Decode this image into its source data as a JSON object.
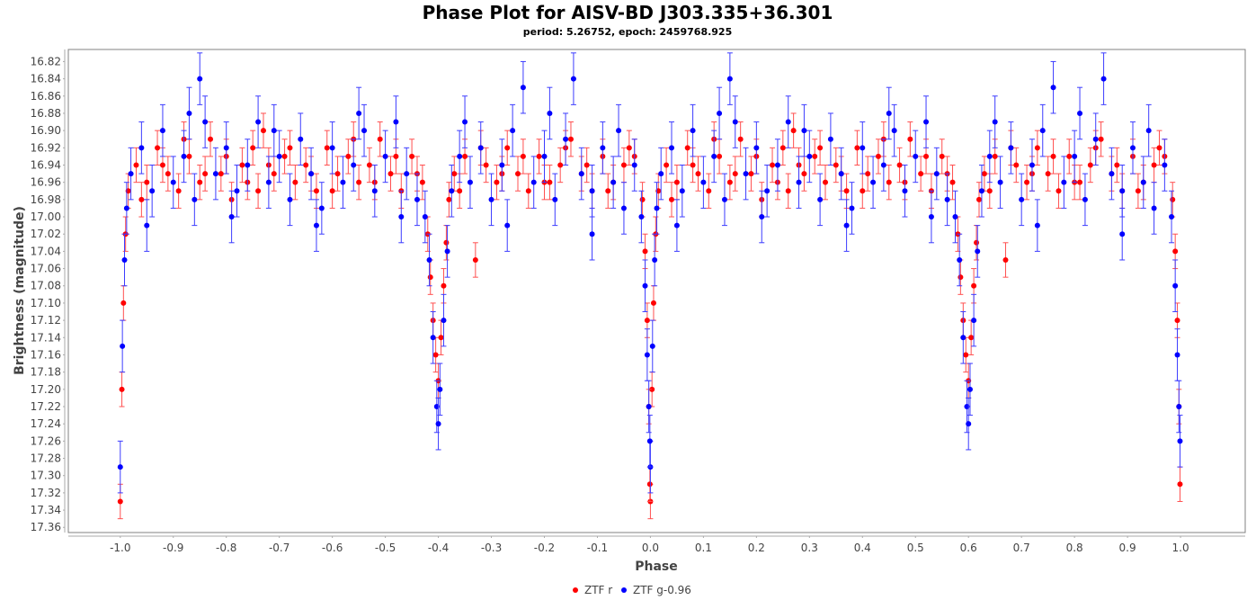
{
  "chart_data": {
    "type": "scatter",
    "title": "Phase Plot for AISV-BD J303.335+36.301",
    "subtitle": "period: 5.26752, epoch: 2459768.925",
    "xlabel": "Phase",
    "ylabel": "Brightness (magnitude)",
    "xlim": [
      -1.098,
      1.122
    ],
    "ylim": [
      16.806,
      17.366
    ],
    "y_inverted": true,
    "xticks": [
      "-1.0",
      "-0.9",
      "-0.8",
      "-0.7",
      "-0.6",
      "-0.5",
      "-0.4",
      "-0.3",
      "-0.2",
      "-0.1",
      "0.0",
      "0.1",
      "0.2",
      "0.3",
      "0.4",
      "0.5",
      "0.6",
      "0.7",
      "0.8",
      "0.9",
      "1.0"
    ],
    "yticks": [
      "16.82",
      "16.84",
      "16.86",
      "16.88",
      "16.90",
      "16.92",
      "16.94",
      "16.96",
      "16.98",
      "17.00",
      "17.02",
      "17.04",
      "17.06",
      "17.08",
      "17.10",
      "17.12",
      "17.14",
      "17.16",
      "17.18",
      "17.20",
      "17.22",
      "17.24",
      "17.26",
      "17.28",
      "17.30",
      "17.32",
      "17.34",
      "17.36"
    ],
    "grid": false,
    "legend_position": "bottom",
    "phase_repeated": "each point shown at phase and phase-1",
    "series": [
      {
        "name": "ZTF r",
        "color": "#ff0000",
        "errcolor": "#ff5050",
        "err": 0.02,
        "points": [
          [
            0.0,
            17.33
          ],
          [
            0.003,
            17.2
          ],
          [
            0.006,
            17.1
          ],
          [
            0.01,
            17.02
          ],
          [
            0.015,
            16.97
          ],
          [
            0.03,
            16.94
          ],
          [
            0.05,
            16.96
          ],
          [
            0.07,
            16.92
          ],
          [
            0.09,
            16.95
          ],
          [
            0.11,
            16.97
          ],
          [
            0.13,
            16.93
          ],
          [
            0.15,
            16.96
          ],
          [
            0.17,
            16.91
          ],
          [
            0.19,
            16.95
          ],
          [
            0.21,
            16.98
          ],
          [
            0.23,
            16.94
          ],
          [
            0.25,
            16.92
          ],
          [
            0.26,
            16.97
          ],
          [
            0.27,
            16.9
          ],
          [
            0.29,
            16.95
          ],
          [
            0.31,
            16.93
          ],
          [
            0.33,
            16.96
          ],
          [
            0.35,
            16.94
          ],
          [
            0.37,
            16.97
          ],
          [
            0.39,
            16.92
          ],
          [
            0.41,
            16.95
          ],
          [
            0.43,
            16.93
          ],
          [
            0.45,
            16.96
          ],
          [
            0.47,
            16.94
          ],
          [
            0.49,
            16.91
          ],
          [
            0.51,
            16.95
          ],
          [
            0.53,
            16.97
          ],
          [
            0.55,
            16.93
          ],
          [
            0.57,
            16.96
          ],
          [
            0.58,
            17.02
          ],
          [
            0.585,
            17.07
          ],
          [
            0.59,
            17.12
          ],
          [
            0.595,
            17.16
          ],
          [
            0.6,
            17.19
          ],
          [
            0.605,
            17.14
          ],
          [
            0.61,
            17.08
          ],
          [
            0.615,
            17.03
          ],
          [
            0.62,
            16.98
          ],
          [
            0.63,
            16.95
          ],
          [
            0.65,
            16.93
          ],
          [
            0.67,
            17.05
          ],
          [
            0.69,
            16.94
          ],
          [
            0.71,
            16.96
          ],
          [
            0.73,
            16.92
          ],
          [
            0.75,
            16.95
          ],
          [
            0.77,
            16.97
          ],
          [
            0.79,
            16.93
          ],
          [
            0.81,
            16.96
          ],
          [
            0.83,
            16.94
          ],
          [
            0.85,
            16.91
          ],
          [
            0.87,
            16.95
          ],
          [
            0.89,
            16.97
          ],
          [
            0.91,
            16.93
          ],
          [
            0.93,
            16.96
          ],
          [
            0.95,
            16.94
          ],
          [
            0.97,
            16.93
          ],
          [
            0.985,
            16.98
          ],
          [
            0.99,
            17.04
          ],
          [
            0.994,
            17.12
          ],
          [
            0.997,
            17.22
          ],
          [
            0.999,
            17.31
          ],
          [
            0.04,
            16.98
          ],
          [
            0.08,
            16.94
          ],
          [
            0.12,
            16.91
          ],
          [
            0.16,
            16.95
          ],
          [
            0.2,
            16.93
          ],
          [
            0.24,
            16.96
          ],
          [
            0.28,
            16.94
          ],
          [
            0.32,
            16.92
          ],
          [
            0.36,
            16.95
          ],
          [
            0.4,
            16.97
          ],
          [
            0.44,
            16.91
          ],
          [
            0.48,
            16.96
          ],
          [
            0.52,
            16.93
          ],
          [
            0.56,
            16.95
          ],
          [
            0.64,
            16.97
          ],
          [
            0.68,
            16.92
          ],
          [
            0.72,
            16.95
          ],
          [
            0.76,
            16.93
          ],
          [
            0.8,
            16.96
          ],
          [
            0.84,
            16.92
          ],
          [
            0.88,
            16.94
          ],
          [
            0.92,
            16.97
          ],
          [
            0.96,
            16.92
          ]
        ]
      },
      {
        "name": "ZTF g-0.96",
        "color": "#0000ff",
        "errcolor": "#3c3cff",
        "err": 0.03,
        "points": [
          [
            0.0,
            17.29
          ],
          [
            0.004,
            17.15
          ],
          [
            0.008,
            17.05
          ],
          [
            0.012,
            16.99
          ],
          [
            0.02,
            16.95
          ],
          [
            0.04,
            16.92
          ],
          [
            0.06,
            16.97
          ],
          [
            0.08,
            16.9
          ],
          [
            0.1,
            16.96
          ],
          [
            0.12,
            16.93
          ],
          [
            0.14,
            16.98
          ],
          [
            0.15,
            16.84
          ],
          [
            0.16,
            16.89
          ],
          [
            0.18,
            16.95
          ],
          [
            0.2,
            16.92
          ],
          [
            0.22,
            16.97
          ],
          [
            0.24,
            16.94
          ],
          [
            0.26,
            16.89
          ],
          [
            0.28,
            16.96
          ],
          [
            0.3,
            16.93
          ],
          [
            0.32,
            16.98
          ],
          [
            0.34,
            16.91
          ],
          [
            0.36,
            16.95
          ],
          [
            0.38,
            16.99
          ],
          [
            0.4,
            16.92
          ],
          [
            0.42,
            16.96
          ],
          [
            0.44,
            16.94
          ],
          [
            0.46,
            16.9
          ],
          [
            0.48,
            16.97
          ],
          [
            0.5,
            16.93
          ],
          [
            0.52,
            16.89
          ],
          [
            0.54,
            16.95
          ],
          [
            0.56,
            16.98
          ],
          [
            0.575,
            17.0
          ],
          [
            0.583,
            17.05
          ],
          [
            0.59,
            17.14
          ],
          [
            0.597,
            17.22
          ],
          [
            0.6,
            17.24
          ],
          [
            0.603,
            17.2
          ],
          [
            0.61,
            17.12
          ],
          [
            0.617,
            17.04
          ],
          [
            0.625,
            16.97
          ],
          [
            0.64,
            16.93
          ],
          [
            0.66,
            16.96
          ],
          [
            0.68,
            16.92
          ],
          [
            0.7,
            16.98
          ],
          [
            0.72,
            16.94
          ],
          [
            0.74,
            16.9
          ],
          [
            0.76,
            16.85
          ],
          [
            0.78,
            16.96
          ],
          [
            0.8,
            16.93
          ],
          [
            0.82,
            16.98
          ],
          [
            0.84,
            16.91
          ],
          [
            0.855,
            16.84
          ],
          [
            0.87,
            16.95
          ],
          [
            0.89,
            16.97
          ],
          [
            0.91,
            16.92
          ],
          [
            0.93,
            16.96
          ],
          [
            0.95,
            16.99
          ],
          [
            0.97,
            16.94
          ],
          [
            0.983,
            17.0
          ],
          [
            0.99,
            17.08
          ],
          [
            0.994,
            17.16
          ],
          [
            0.997,
            17.22
          ],
          [
            0.999,
            17.26
          ],
          [
            0.05,
            17.01
          ],
          [
            0.13,
            16.88
          ],
          [
            0.21,
            17.0
          ],
          [
            0.29,
            16.9
          ],
          [
            0.37,
            17.01
          ],
          [
            0.45,
            16.88
          ],
          [
            0.53,
            17.0
          ],
          [
            0.65,
            16.89
          ],
          [
            0.73,
            17.01
          ],
          [
            0.81,
            16.88
          ],
          [
            0.89,
            17.02
          ],
          [
            0.94,
            16.9
          ]
        ]
      }
    ]
  }
}
